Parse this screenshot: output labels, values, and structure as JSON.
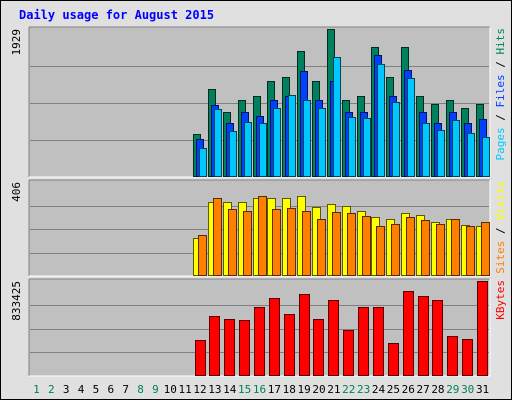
{
  "chart_data": {
    "type": "bar",
    "title": "Daily usage for August 2015",
    "categories": [
      "1",
      "2",
      "3",
      "4",
      "5",
      "6",
      "7",
      "8",
      "9",
      "10",
      "11",
      "12",
      "13",
      "14",
      "15",
      "16",
      "17",
      "18",
      "19",
      "20",
      "21",
      "22",
      "23",
      "24",
      "25",
      "26",
      "27",
      "28",
      "29",
      "30",
      "31"
    ],
    "weekend_days": [
      1,
      2,
      8,
      9,
      15,
      16,
      22,
      23,
      29,
      30
    ],
    "panels": [
      {
        "id": "pages-files-hits",
        "max_label": "1929",
        "ylim": [
          0,
          1929
        ],
        "label_parts": [
          {
            "text": "Pages",
            "color": "#00c8ff"
          },
          {
            "text": " / ",
            "color": "#000000"
          },
          {
            "text": "Files",
            "color": "#0040ff"
          },
          {
            "text": " / ",
            "color": "#000000"
          },
          {
            "text": "Hits",
            "color": "#00805c"
          }
        ],
        "series": [
          {
            "name": "Hits",
            "color": "#00805c",
            "values": [
              0,
              0,
              0,
              0,
              0,
              0,
              0,
              0,
              0,
              0,
              0,
              565,
              1150,
              850,
              1000,
              1050,
              1250,
              1300,
              1640,
              1250,
              1929,
              1000,
              1050,
              1700,
              1300,
              1700,
              1050,
              950,
              1000,
              900,
              950
            ]
          },
          {
            "name": "Files",
            "color": "#0040ff",
            "values": [
              0,
              0,
              0,
              0,
              0,
              0,
              0,
              0,
              0,
              0,
              0,
              500,
              940,
              700,
              850,
              800,
              1000,
              1050,
              1380,
              1000,
              1250,
              850,
              850,
              1590,
              1050,
              1400,
              850,
              700,
              850,
              700,
              750
            ]
          },
          {
            "name": "Pages",
            "color": "#00c8ff",
            "values": [
              0,
              0,
              0,
              0,
              0,
              0,
              0,
              0,
              0,
              0,
              0,
              380,
              880,
              600,
              720,
              700,
              900,
              1070,
              1010,
              900,
              1570,
              780,
              770,
              1470,
              980,
              1290,
              700,
              610,
              740,
              580,
              520
            ]
          }
        ]
      },
      {
        "id": "sites-visits",
        "max_label": "406",
        "ylim": [
          0,
          406
        ],
        "label_parts": [
          {
            "text": "Sites",
            "color": "#ff8000"
          },
          {
            "text": " / ",
            "color": "#000000"
          },
          {
            "text": "Visits",
            "color": "#ffff00"
          }
        ],
        "series": [
          {
            "name": "Visits",
            "color": "#ffff00",
            "values": [
              0,
              0,
              0,
              0,
              0,
              0,
              0,
              0,
              0,
              0,
              0,
              165,
              321,
              321,
              321,
              335,
              335,
              335,
              345,
              298,
              312,
              304,
              280,
              255,
              248,
              270,
              263,
              233,
              248,
              221,
              217
            ]
          },
          {
            "name": "Sites",
            "color": "#ff8000",
            "values": [
              0,
              0,
              0,
              0,
              0,
              0,
              0,
              0,
              0,
              0,
              0,
              175,
              337,
              288,
              280,
              345,
              288,
              292,
              279,
              248,
              275,
              270,
              258,
              218,
              225,
              254,
              240,
              225,
              245,
              215,
              232
            ]
          }
        ]
      },
      {
        "id": "kbytes",
        "max_label": "833425",
        "ylim": [
          0,
          833425
        ],
        "label_parts": [
          {
            "text": "KBytes",
            "color": "#ff0000"
          }
        ],
        "series": [
          {
            "name": "KBytes",
            "color": "#ff0000",
            "values": [
              0,
              0,
              0,
              0,
              0,
              0,
              0,
              0,
              0,
              0,
              0,
              315000,
              525000,
              497000,
              488000,
              605000,
              680000,
              545000,
              720000,
              502000,
              663000,
              405000,
              605000,
              605000,
              288000,
              748000,
              698000,
              663000,
              355000,
              325000,
              833425
            ]
          }
        ]
      }
    ]
  },
  "colors": {
    "frame_bg": "#e0e0e0",
    "plot_bg": "#c0c0c0",
    "grid": "#808080",
    "title": "#0000ff",
    "weekday_label": "#000000",
    "weekend_label": "#00805c"
  }
}
